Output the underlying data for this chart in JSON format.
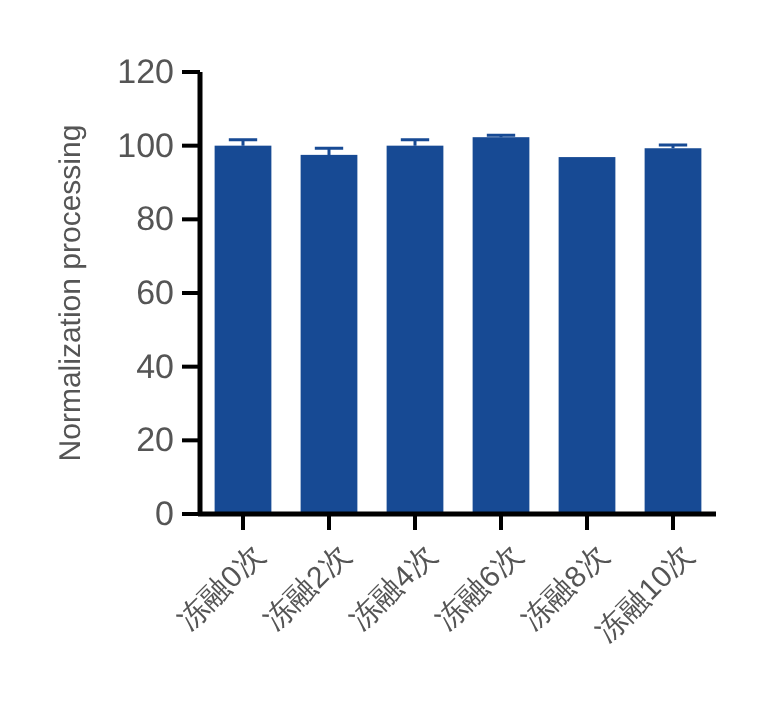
{
  "chart_data": {
    "type": "bar",
    "ylabel": "Normalization processing",
    "categories": [
      "冻融0次",
      "冻融2次",
      "冻融4次",
      "冻融6次",
      "冻融8次",
      "冻融10次"
    ],
    "values": [
      100,
      97.5,
      100,
      102.3,
      96.9,
      99.3
    ],
    "errors": [
      1.6,
      1.8,
      1.6,
      0.5,
      null,
      0.9
    ],
    "color": "#174a94",
    "ylim": [
      0,
      120
    ],
    "yticks": [
      0,
      20,
      40,
      60,
      80,
      100,
      120
    ]
  }
}
